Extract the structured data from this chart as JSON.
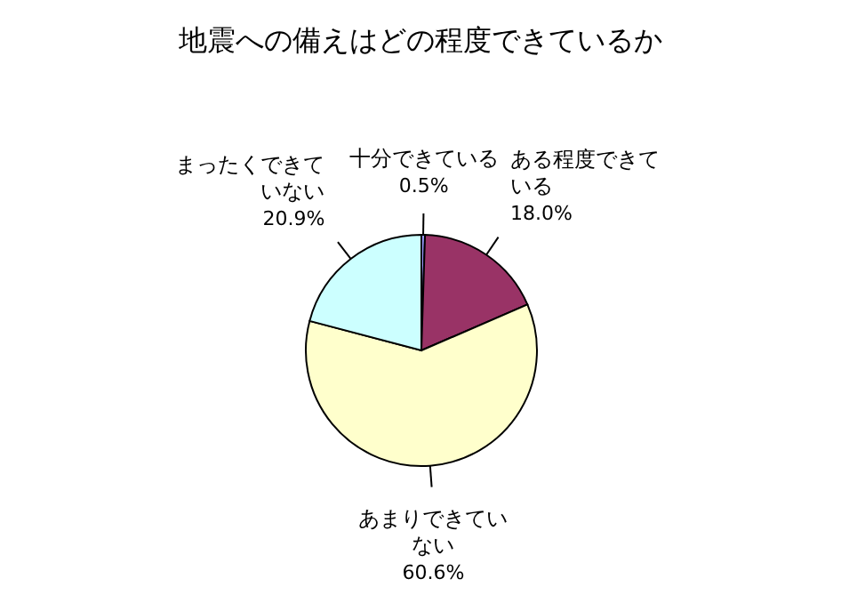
{
  "chart_data": {
    "type": "pie",
    "title": "地震への備えはどの程度できているか",
    "categories": [
      "十分できている",
      "ある程度できている",
      "あまりできていない",
      "まったくできていない"
    ],
    "values": [
      0.5,
      18.0,
      60.6,
      20.9
    ],
    "value_labels": [
      "0.5%",
      "18.0%",
      "60.6%",
      "20.9%"
    ],
    "colors": [
      "#9999ff",
      "#993366",
      "#ffffcc",
      "#ccffff"
    ]
  }
}
